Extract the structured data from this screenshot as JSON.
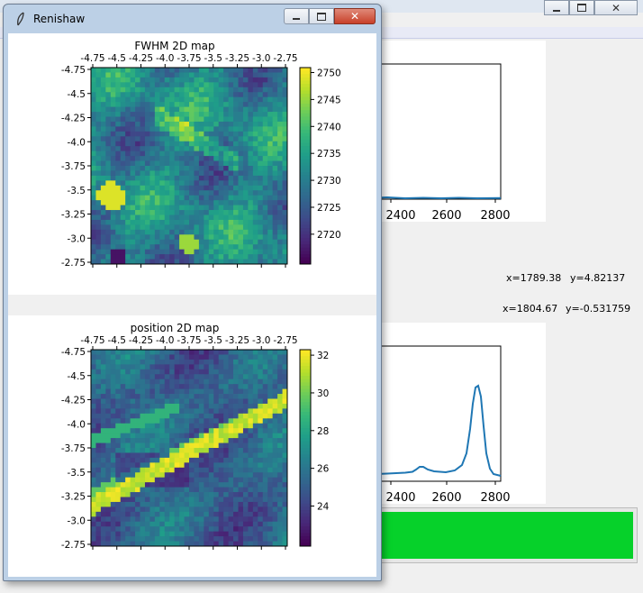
{
  "background_window": {
    "coord_label_1": {
      "x": "x=1789.38",
      "y": "y=4.82137"
    },
    "coord_label_2": {
      "x": "x=1804.67",
      "y": "y=-0.531759"
    },
    "plot_top": {
      "x_ticks": [
        "2400",
        "2600",
        "2800"
      ]
    },
    "plot_bottom": {
      "x_ticks": [
        "2400",
        "2600",
        "2800"
      ]
    },
    "progress_bar": {
      "fill_fraction": 1.0,
      "color": "#06d12a"
    }
  },
  "renishaw_window": {
    "title": "Renishaw",
    "controls": {
      "minimize": "minimize",
      "maximize": "maximize",
      "close": "close"
    },
    "fwhm_map": {
      "title": "FWHM 2D map",
      "x_ticks": [
        "-4.75",
        "-4.5",
        "-4.25",
        "-4.0",
        "-3.75",
        "-3.5",
        "-3.25",
        "-3.0",
        "-2.75"
      ],
      "y_ticks": [
        "-4.75",
        "-4.5",
        "-4.25",
        "-4.0",
        "-3.75",
        "-3.5",
        "-3.25",
        "-3.0",
        "-2.75"
      ],
      "colorbar_ticks": [
        "2750",
        "2745",
        "2740",
        "2735",
        "2730",
        "2725",
        "2720"
      ]
    },
    "position_map": {
      "title": "position 2D map",
      "x_ticks": [
        "-4.75",
        "-4.5",
        "-4.25",
        "-4.0",
        "-3.75",
        "-3.5",
        "-3.25",
        "-3.0",
        "-2.75"
      ],
      "y_ticks": [
        "-4.75",
        "-4.5",
        "-4.25",
        "-4.0",
        "-3.75",
        "-3.5",
        "-3.25",
        "-3.0",
        "-2.75"
      ],
      "colorbar_ticks": [
        "32",
        "30",
        "28",
        "26",
        "24"
      ]
    }
  },
  "colors": {
    "line": "#1f77b4",
    "progress": "#06d12a",
    "title_bar": "#bcd0e6"
  }
}
